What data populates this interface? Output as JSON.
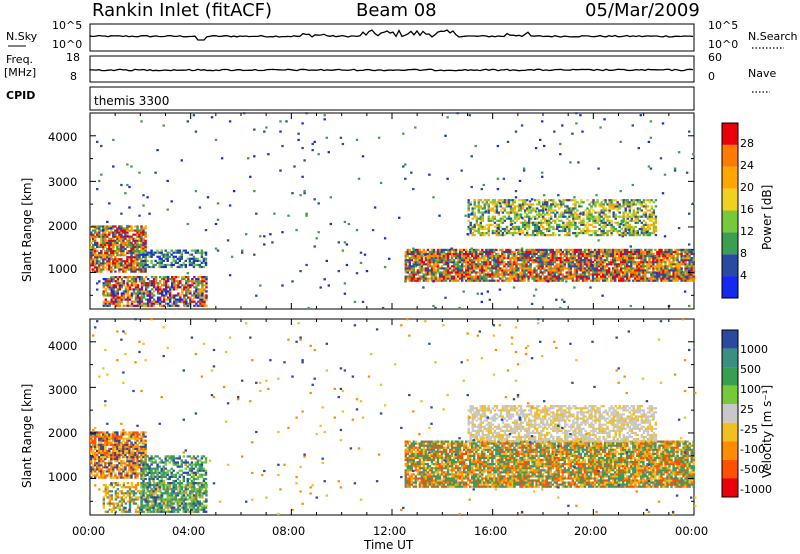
{
  "header": {
    "station": "Rankin Inlet (fitACF)",
    "beam": "Beam 08",
    "date": "05/Mar/2009"
  },
  "top_panels": {
    "nsky_label": "N.Sky",
    "nsearch_label": "N.Search",
    "nsky_ticks": [
      "10^5",
      "10^0"
    ],
    "nsearch_ticks": [
      "10^5",
      "10^0"
    ],
    "freq_label": "Freq.",
    "freq_unit": "[MHz]",
    "freq_ticks": [
      "18",
      "8"
    ],
    "nave_label": "Nave",
    "nave_ticks": [
      "60",
      "0"
    ],
    "cpid_label": "CPID",
    "cpid_value": "themis 3300"
  },
  "power_panel": {
    "ylabel": "Slant Range [km]",
    "cbar_label": "Power [dB]",
    "cbar_ticks": [
      "28",
      "24",
      "20",
      "16",
      "12",
      "8",
      "4"
    ],
    "cbar_colors": [
      "#e8000b",
      "#ff7a00",
      "#ffa500",
      "#f0d020",
      "#78c83c",
      "#3c9e50",
      "#2a4aa0",
      "#1428f0"
    ]
  },
  "velocity_panel": {
    "ylabel": "Slant Range [km]",
    "cbar_label": "Velocity [m s⁻¹]",
    "cbar_ticks": [
      "1000",
      "500",
      "100",
      "25",
      "-25",
      "-100",
      "-500",
      "-1000"
    ],
    "cbar_colors": [
      "#2a4aa0",
      "#3c8e80",
      "#3a9e50",
      "#78c83c",
      "#c8c8c8",
      "#f0c020",
      "#ff8c00",
      "#ff5000",
      "#e8000b"
    ]
  },
  "x_axis": {
    "label": "Time UT",
    "ticks": [
      "00:00",
      "04:00",
      "08:00",
      "12:00",
      "16:00",
      "20:00",
      "00:00"
    ]
  },
  "chart_data": {
    "type": "heatmap",
    "title": "Rankin Inlet (fitACF)",
    "x_range": [
      "00:00",
      "24:00"
    ],
    "y_range_km": [
      200,
      4500
    ],
    "y_ticks_km": [
      1000,
      2000,
      3000,
      4000
    ],
    "power_regions": [
      {
        "t": [
          0,
          2
        ],
        "range_km": [
          1000,
          2000
        ],
        "level": "24-28 dB core"
      },
      {
        "t": [
          0.5,
          4.5
        ],
        "range_km": [
          250,
          900
        ],
        "level": "20-28 dB"
      },
      {
        "t": [
          2,
          4.5
        ],
        "range_km": [
          1100,
          1500
        ],
        "level": "4-12 dB"
      },
      {
        "t": [
          12.5,
          24
        ],
        "range_km": [
          800,
          1500
        ],
        "level": "24-28 dB core"
      },
      {
        "t": [
          15,
          22.5
        ],
        "range_km": [
          1800,
          2600
        ],
        "level": "8-20 dB"
      }
    ],
    "velocity_regions": [
      {
        "t": [
          0,
          2
        ],
        "range_km": [
          1000,
          2000
        ],
        "velocity": "-100 to -500"
      },
      {
        "t": [
          2,
          4.5
        ],
        "range_km": [
          250,
          1500
        ],
        "velocity": "25 to 500"
      },
      {
        "t": [
          12.5,
          24
        ],
        "range_km": [
          800,
          1800
        ],
        "velocity": "-100 to -500"
      },
      {
        "t": [
          15,
          22.5
        ],
        "range_km": [
          1800,
          2600
        ],
        "velocity": "-25 to 25"
      }
    ]
  }
}
